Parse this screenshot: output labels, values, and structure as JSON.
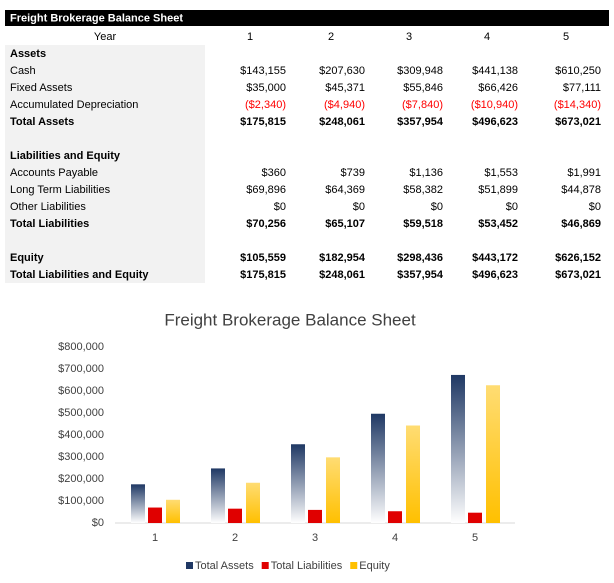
{
  "table": {
    "title": "Freight Brokerage Balance Sheet",
    "header": [
      "Year",
      "1",
      "2",
      "3",
      "4",
      "5"
    ],
    "sections": [
      {
        "rows": [
          {
            "label": "Assets",
            "bold": true
          },
          {
            "label": "Cash",
            "values": [
              "$143,155",
              "$207,630",
              "$309,948",
              "$441,138",
              "$610,250"
            ]
          },
          {
            "label": "Fixed Assets",
            "values": [
              "$35,000",
              "$45,371",
              "$55,846",
              "$66,426",
              "$77,111"
            ]
          },
          {
            "label": "Accumulated Depreciation",
            "values": [
              "($2,340)",
              "($4,940)",
              "($7,840)",
              "($10,940)",
              "($14,340)"
            ],
            "color": "#ff0000"
          },
          {
            "label": "Total Assets",
            "bold": true,
            "values": [
              "$175,815",
              "$248,061",
              "$357,954",
              "$496,623",
              "$673,021"
            ]
          }
        ]
      },
      {
        "rows": [
          {
            "label": "Liabilities and Equity",
            "bold": true
          },
          {
            "label": "Accounts Payable",
            "values": [
              "$360",
              "$739",
              "$1,136",
              "$1,553",
              "$1,991"
            ]
          },
          {
            "label": "Long Term Liabilities",
            "values": [
              "$69,896",
              "$64,369",
              "$58,382",
              "$51,899",
              "$44,878"
            ]
          },
          {
            "label": "Other Liabilities",
            "values": [
              "$0",
              "$0",
              "$0",
              "$0",
              "$0"
            ]
          },
          {
            "label": "Total Liabilities",
            "bold": true,
            "values": [
              "$70,256",
              "$65,107",
              "$59,518",
              "$53,452",
              "$46,869"
            ]
          }
        ]
      },
      {
        "rows": [
          {
            "label": "Equity",
            "bold": true,
            "values": [
              "$105,559",
              "$182,954",
              "$298,436",
              "$443,172",
              "$626,152"
            ]
          },
          {
            "label": "Total Liabilities and Equity",
            "bold": true,
            "values": [
              "$175,815",
              "$248,061",
              "$357,954",
              "$496,623",
              "$673,021"
            ]
          }
        ]
      }
    ]
  },
  "chart_data": {
    "type": "bar",
    "title": "Freight Brokerage Balance Sheet",
    "categories": [
      "1",
      "2",
      "3",
      "4",
      "5"
    ],
    "series": [
      {
        "name": "Total Assets",
        "color": "#1f3864",
        "values": [
          175815,
          248061,
          357954,
          496623,
          673021
        ]
      },
      {
        "name": "Total Liabilities",
        "color": "#e00000",
        "values": [
          70256,
          65107,
          59518,
          53452,
          46869
        ]
      },
      {
        "name": "Equity",
        "color": "#ffc000",
        "values": [
          105559,
          182954,
          298436,
          443172,
          626152
        ]
      }
    ],
    "ylim": [
      0,
      800000
    ],
    "yticks": [
      {
        "value": 0,
        "label": "$0"
      },
      {
        "value": 100000,
        "label": "$100,000"
      },
      {
        "value": 200000,
        "label": "$200,000"
      },
      {
        "value": 300000,
        "label": "$300,000"
      },
      {
        "value": 400000,
        "label": "$400,000"
      },
      {
        "value": 500000,
        "label": "$500,000"
      },
      {
        "value": 600000,
        "label": "$600,000"
      },
      {
        "value": 700000,
        "label": "$700,000"
      },
      {
        "value": 800000,
        "label": "$800,000"
      }
    ],
    "legend": "bottom"
  }
}
